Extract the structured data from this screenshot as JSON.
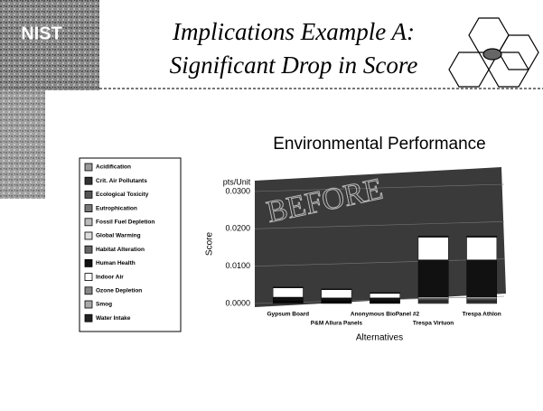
{
  "slide": {
    "logo": "NIST",
    "title_lines": [
      "Implications Example A:",
      "Significant Drop in Score"
    ]
  },
  "chart_data": {
    "type": "bar",
    "stacked": true,
    "title": "Environmental Performance",
    "y_unit": "pts/Unit",
    "y_label": "Score",
    "x_label": "Alternatives",
    "watermark": "BEFORE",
    "categories": [
      "Gypsum Board",
      "P&M Allura Panels",
      "Anonymous BioPanel #2",
      "Trespa Virtuon",
      "Trespa Athlon"
    ],
    "ylim": [
      0,
      0.03
    ],
    "yticks": [
      {
        "value": 0,
        "label": "0.0000"
      },
      {
        "value": 0.01,
        "label": "0.0100"
      },
      {
        "value": 0.02,
        "label": "0.0200"
      },
      {
        "value": 0.03,
        "label": "0.0300"
      }
    ],
    "series": [
      {
        "name": "Acidification",
        "color": "#9a9a9a",
        "values": [
          0.0001,
          0.0001,
          0.0001,
          0.0002,
          0.0002
        ]
      },
      {
        "name": "Crit. Air Pollutants",
        "color": "#333333",
        "values": [
          0.0002,
          0.0002,
          0.0001,
          0.0004,
          0.0004
        ]
      },
      {
        "name": "Ecological Toxicity",
        "color": "#555555",
        "values": [
          0.0001,
          0.0001,
          0.0001,
          0.0003,
          0.0003
        ]
      },
      {
        "name": "Eutrophication",
        "color": "#777777",
        "values": [
          0.0001,
          0.0001,
          0.0001,
          0.0002,
          0.0002
        ]
      },
      {
        "name": "Fossil Fuel Depletion",
        "color": "#bbbbbb",
        "values": [
          0.0001,
          0.0001,
          0.0001,
          0.0003,
          0.0003
        ]
      },
      {
        "name": "Global Warming",
        "color": "#dddddd",
        "values": [
          0.0001,
          0.0001,
          0.0001,
          0.0003,
          0.0003
        ]
      },
      {
        "name": "Habitat Alteration",
        "color": "#666666",
        "values": [
          0,
          0,
          0,
          0,
          0
        ]
      },
      {
        "name": "Human Health",
        "color": "#111111",
        "values": [
          0.001,
          0.0008,
          0.0009,
          0.01,
          0.01
        ]
      },
      {
        "name": "Indoor Air",
        "color": "#ffffff",
        "values": [
          0.0025,
          0.0022,
          0.0012,
          0.006,
          0.006
        ]
      },
      {
        "name": "Ozone Depletion",
        "color": "#888888",
        "values": [
          0,
          0,
          0,
          0,
          0
        ]
      },
      {
        "name": "Smog",
        "color": "#aaaaaa",
        "values": [
          0.0001,
          0.0001,
          0.0001,
          0.0002,
          0.0002
        ]
      },
      {
        "name": "Water Intake",
        "color": "#222222",
        "values": [
          0.0001,
          0.0001,
          0.0001,
          0.0002,
          0.0002
        ]
      }
    ]
  }
}
